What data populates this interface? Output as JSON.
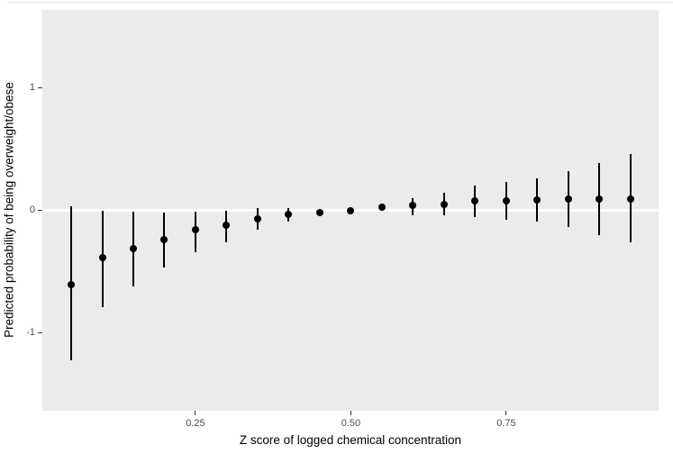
{
  "chart_data": {
    "type": "scatter",
    "subtype": "point-estimates-with-error-bars",
    "title": "",
    "xlabel": "Z score of logged chemical concentration",
    "ylabel": "Predicted probability of being overweight/obese",
    "xlim": [
      0.0036,
      0.9951
    ],
    "ylim": [
      -1.64,
      1.64
    ],
    "grid": "none",
    "legend": "none",
    "reference_line": {
      "y": 0
    },
    "x_ticks": [
      {
        "value": 0.25,
        "label": "0.25"
      },
      {
        "value": 0.5,
        "label": "0.50"
      },
      {
        "value": 0.75,
        "label": "0.75"
      }
    ],
    "y_ticks": [
      {
        "value": 1,
        "label": "1"
      },
      {
        "value": 0,
        "label": "0"
      },
      {
        "value": -1,
        "label": "-1"
      }
    ],
    "series": [
      {
        "name": "predicted-probability",
        "x": [
          0.05,
          0.1,
          0.15,
          0.2,
          0.25,
          0.3,
          0.35,
          0.4,
          0.45,
          0.5,
          0.55,
          0.6,
          0.65,
          0.7,
          0.75,
          0.8,
          0.85,
          0.9,
          0.95
        ],
        "y": [
          -0.61,
          -0.39,
          -0.31,
          -0.24,
          -0.16,
          -0.12,
          -0.07,
          -0.035,
          -0.02,
          0.0,
          0.025,
          0.04,
          0.05,
          0.075,
          0.08,
          0.085,
          0.09,
          0.09,
          0.095
        ],
        "y_lo": [
          -1.23,
          -0.79,
          -0.62,
          -0.47,
          -0.34,
          -0.26,
          -0.155,
          -0.09,
          -0.05,
          -0.02,
          -0.005,
          -0.04,
          -0.04,
          -0.055,
          -0.08,
          -0.095,
          -0.14,
          -0.205,
          -0.26
        ],
        "y_hi": [
          0.03,
          0.0,
          -0.01,
          -0.02,
          -0.01,
          0.0,
          0.015,
          0.02,
          0.005,
          0.02,
          0.05,
          0.1,
          0.145,
          0.2,
          0.23,
          0.26,
          0.32,
          0.39,
          0.46
        ]
      }
    ]
  },
  "colors": {
    "panel_background": "#ebebeb",
    "point_color": "#000000",
    "error_bar_color": "#000000",
    "reference_line_color": "#ffffff",
    "axis_text_color": "#4d4d4d",
    "axis_title_color": "#000000",
    "tick_mark_color": "#333333"
  }
}
